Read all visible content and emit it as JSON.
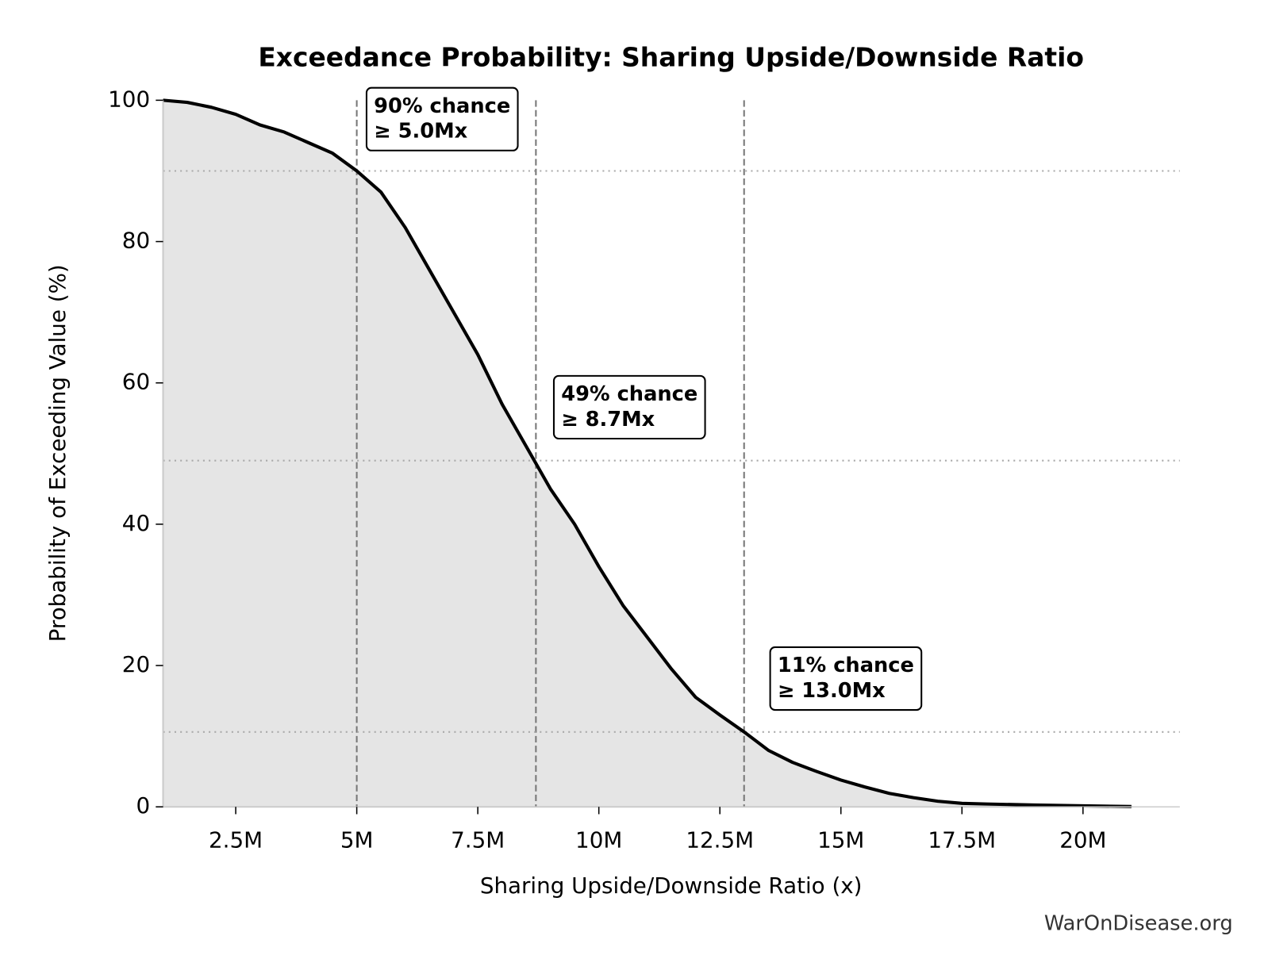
{
  "chart_data": {
    "type": "line",
    "title": "Exceedance Probability: Sharing Upside/Downside Ratio",
    "xlabel": "Sharing Upside/Downside Ratio (x)",
    "ylabel": "Probability of Exceeding Value (%)",
    "watermark": "WarOnDisease.org",
    "color": "#000000",
    "fill_color": "#e5e5e5",
    "x": [
      1000000,
      1500000,
      2000000,
      2500000,
      3000000,
      3500000,
      4000000,
      4500000,
      5000000,
      5500000,
      6000000,
      6500000,
      7000000,
      7500000,
      8000000,
      8500000,
      9000000,
      9500000,
      10000000,
      10500000,
      11000000,
      11500000,
      12000000,
      12500000,
      13000000,
      13500000,
      14000000,
      14500000,
      15000000,
      15500000,
      16000000,
      16500000,
      17000000,
      17500000,
      18000000,
      19000000,
      20000000,
      21000000
    ],
    "values": [
      100,
      99.7,
      99,
      98,
      96.5,
      95.5,
      94,
      92.5,
      90,
      87,
      82,
      76,
      70,
      64,
      57,
      51,
      45,
      40,
      34,
      28.5,
      24,
      19.5,
      15.5,
      13,
      10.6,
      8,
      6.3,
      5,
      3.8,
      2.8,
      1.9,
      1.3,
      0.8,
      0.5,
      0.4,
      0.25,
      0.15,
      0.05
    ],
    "xlim": [
      1000000,
      22000000
    ],
    "ylim": [
      0,
      100
    ],
    "xticks": [
      {
        "value": 2500000,
        "label": "2.5M"
      },
      {
        "value": 5000000,
        "label": "5M"
      },
      {
        "value": 7500000,
        "label": "7.5M"
      },
      {
        "value": 10000000,
        "label": "10M"
      },
      {
        "value": 12500000,
        "label": "12.5M"
      },
      {
        "value": 15000000,
        "label": "15M"
      },
      {
        "value": 17500000,
        "label": "17.5M"
      },
      {
        "value": 20000000,
        "label": "20M"
      }
    ],
    "yticks": [
      0,
      20,
      40,
      60,
      80,
      100
    ],
    "thresholds": [
      {
        "x": 5000000,
        "y": 90,
        "text": [
          "90% chance",
          "≥ 5.0Mx"
        ]
      },
      {
        "x": 8700000,
        "y": 49,
        "text": [
          "49% chance",
          "≥ 8.7Mx"
        ]
      },
      {
        "x": 13000000,
        "y": 10.6,
        "text": [
          "11% chance",
          "≥ 13.0Mx"
        ]
      }
    ]
  }
}
